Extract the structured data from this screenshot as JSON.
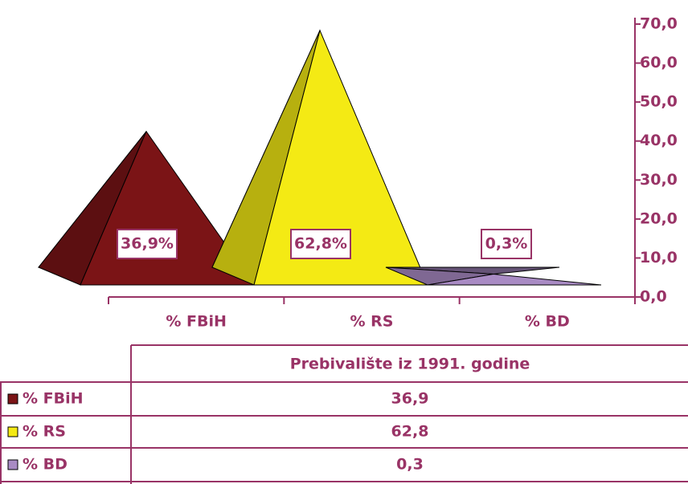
{
  "chart_data": {
    "type": "pyramid",
    "categories": [
      "% FBiH",
      "% RS",
      "% BD"
    ],
    "values": [
      36.9,
      62.8,
      0.3
    ],
    "value_labels": [
      "36,9%",
      "62,8%",
      "0,3%"
    ],
    "colors": [
      "#7b1416",
      "#f4ea14",
      "#a98bc4"
    ],
    "ylim": [
      0,
      70
    ],
    "yticks": [
      {
        "value": 0,
        "label": "0,0"
      },
      {
        "value": 10,
        "label": "10,0"
      },
      {
        "value": 20,
        "label": "20,0"
      },
      {
        "value": 30,
        "label": "30,0"
      },
      {
        "value": 40,
        "label": "40,0"
      },
      {
        "value": 50,
        "label": "50,0"
      },
      {
        "value": 60,
        "label": "60,0"
      },
      {
        "value": 70,
        "label": "70,0"
      }
    ],
    "data_table": {
      "title": "Prebivalište iz 1991. godine",
      "cells": [
        "36,9",
        "62,8",
        "0,3"
      ]
    }
  }
}
